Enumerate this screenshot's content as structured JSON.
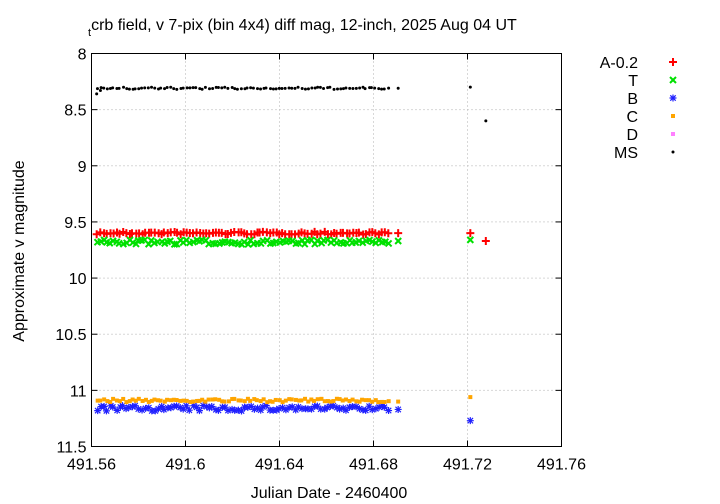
{
  "chart_data": {
    "type": "scatter",
    "title_prefix": "t",
    "title": "crb field, v 7-pix (bin 4x4) diff mag, 12-inch, 2025 Aug 04 UT",
    "xlabel": "Julian Date - 2460400",
    "ylabel": "Approximate v magnitude",
    "xlim": [
      491.56,
      491.76
    ],
    "ylim": [
      11.5,
      8
    ],
    "y_inverted": true,
    "grid": true,
    "legend_position": "outside-right",
    "x_ticks": [
      "491.56",
      "491.6",
      "491.64",
      "491.68",
      "491.72",
      "491.76"
    ],
    "y_ticks": [
      "8",
      "8.5",
      "9",
      "9.5",
      "10",
      "10.5",
      "11",
      "11.5"
    ],
    "x_tick_values": [
      491.56,
      491.6,
      491.64,
      491.68,
      491.72,
      491.76
    ],
    "y_tick_values": [
      8,
      8.5,
      9,
      9.5,
      10,
      10.5,
      11,
      11.5
    ],
    "series": [
      {
        "name": "A-0.2",
        "marker": "plus",
        "color": "#ff0000",
        "base": 9.6,
        "spread": 0.012,
        "extra_points": [
          [
            491.6905,
            9.6
          ],
          [
            491.7212,
            9.6
          ],
          [
            491.7278,
            9.67
          ]
        ]
      },
      {
        "name": "T",
        "marker": "x",
        "color": "#00e000",
        "base": 9.68,
        "spread": 0.02,
        "extra_points": [
          [
            491.6905,
            9.67
          ],
          [
            491.7212,
            9.66
          ]
        ]
      },
      {
        "name": "B",
        "marker": "star",
        "color": "#2020ff",
        "base": 11.16,
        "spread": 0.025,
        "extra_points": [
          [
            491.6905,
            11.17
          ],
          [
            491.7212,
            11.27
          ]
        ]
      },
      {
        "name": "C",
        "marker": "square",
        "color": "#ffa500",
        "base": 11.09,
        "spread": 0.015,
        "extra_points": [
          [
            491.6905,
            11.1
          ],
          [
            491.7212,
            11.06
          ]
        ]
      },
      {
        "name": "D",
        "marker": "square",
        "color": "#ff80ff",
        "base": null,
        "spread": 0,
        "extra_points": []
      },
      {
        "name": "MS",
        "marker": "dot",
        "color": "#000000",
        "base": 8.31,
        "spread": 0.01,
        "extra_points": [
          [
            491.5622,
            8.36
          ],
          [
            491.5638,
            8.33
          ],
          [
            491.6905,
            8.31
          ],
          [
            491.7212,
            8.3
          ],
          [
            491.7278,
            8.6
          ]
        ]
      }
    ],
    "main_run": {
      "x_start": 491.5625,
      "x_end": 491.6862,
      "n": 92
    }
  }
}
